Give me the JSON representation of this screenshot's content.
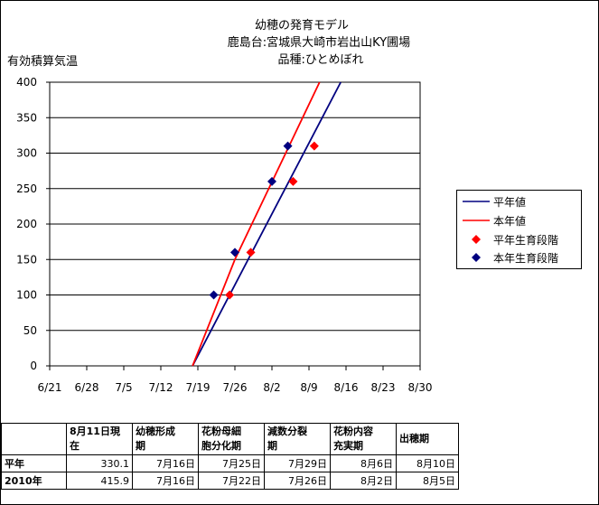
{
  "title": {
    "line1": "幼穂の発育モデル",
    "line2": "鹿島台:宮城県大崎市岩出山KY圃場",
    "line3": "品種:ひとめぼれ"
  },
  "chart_data": {
    "type": "line",
    "ylabel": "有効積算気温",
    "ylim": [
      0,
      400
    ],
    "yticks": [
      0,
      50,
      100,
      150,
      200,
      250,
      300,
      350,
      400
    ],
    "xticks": [
      "6/21",
      "6/28",
      "7/5",
      "7/12",
      "7/19",
      "7/26",
      "8/2",
      "8/9",
      "8/16",
      "8/23",
      "8/30"
    ],
    "grid": "horizontal",
    "legend_position": "right",
    "series": [
      {
        "name": "平年値",
        "kind": "line",
        "color": "#000080",
        "points": [
          [
            "7/18",
            0
          ],
          [
            "8/15",
            400
          ]
        ]
      },
      {
        "name": "本年値",
        "kind": "line",
        "color": "#ff0000",
        "points": [
          [
            "7/18",
            0
          ],
          [
            "7/26",
            150
          ],
          [
            "8/11",
            400
          ]
        ]
      },
      {
        "name": "平年生育段階",
        "kind": "marker",
        "color": "#ff0000",
        "points": [
          [
            "7/25",
            100
          ],
          [
            "7/29",
            160
          ],
          [
            "8/6",
            260
          ],
          [
            "8/10",
            310
          ]
        ]
      },
      {
        "name": "本年生育段階",
        "kind": "marker",
        "color": "#000080",
        "points": [
          [
            "7/22",
            100
          ],
          [
            "7/26",
            160
          ],
          [
            "8/2",
            260
          ],
          [
            "8/5",
            310
          ]
        ]
      }
    ]
  },
  "table": {
    "headers": [
      "",
      "8月11日現在",
      "幼穂形成期",
      "花粉母細胞分化期",
      "減数分裂期",
      "花粉内容充実期",
      "出穂期"
    ],
    "header_lines": [
      [
        ""
      ],
      [
        "8月11日現",
        "在"
      ],
      [
        "幼穂形成",
        "期"
      ],
      [
        "花粉母細",
        "胞分化期"
      ],
      [
        "減数分裂",
        "期"
      ],
      [
        "花粉内容",
        "充実期"
      ],
      [
        "出穂期"
      ]
    ],
    "rows": [
      [
        "平年",
        "330.1",
        "7月16日",
        "7月25日",
        "7月29日",
        "8月6日",
        "8月10日"
      ],
      [
        "2010年",
        "415.9",
        "7月16日",
        "7月22日",
        "7月26日",
        "8月2日",
        "8月5日"
      ]
    ]
  }
}
